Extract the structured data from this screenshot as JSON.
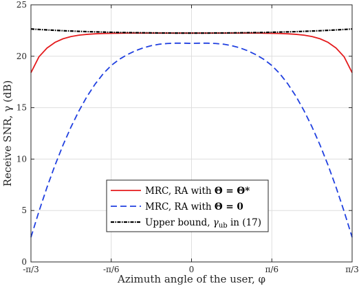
{
  "chart_data": {
    "type": "line",
    "xlabel": "Azimuth angle of the user, φ",
    "ylabel": "Receive SNR, γ (dB)",
    "xlim": [
      -1.0472,
      1.0472
    ],
    "ylim": [
      0,
      25
    ],
    "x_ticks": [
      {
        "value": -1.0472,
        "label": "-π/3"
      },
      {
        "value": -0.5236,
        "label": "-π/6"
      },
      {
        "value": 0,
        "label": "0"
      },
      {
        "value": 0.5236,
        "label": "π/6"
      },
      {
        "value": 1.0472,
        "label": "π/3"
      }
    ],
    "y_ticks": [
      0,
      5,
      10,
      15,
      20,
      25
    ],
    "grid": true,
    "legend_position": "bottom-center",
    "x": [
      -1.0472,
      -0.9948,
      -0.9425,
      -0.8901,
      -0.8378,
      -0.7854,
      -0.733,
      -0.6807,
      -0.6283,
      -0.576,
      -0.5236,
      -0.4712,
      -0.4189,
      -0.3665,
      -0.3142,
      -0.2618,
      -0.2094,
      -0.1571,
      -0.1047,
      -0.0524,
      0,
      0.0524,
      0.1047,
      0.1571,
      0.2094,
      0.2618,
      0.3142,
      0.3665,
      0.4189,
      0.4712,
      0.5236,
      0.576,
      0.6283,
      0.6807,
      0.733,
      0.7854,
      0.8378,
      0.8901,
      0.9425,
      0.9948,
      1.0472
    ],
    "series": [
      {
        "legend": "MRC, RA with ",
        "legend_math": "Θ = Θ*",
        "color": "#e41a1c",
        "dash": "solid",
        "values": [
          18.4,
          19.95,
          20.8,
          21.35,
          21.7,
          21.92,
          22.05,
          22.13,
          22.18,
          22.21,
          22.23,
          22.24,
          22.25,
          22.25,
          22.25,
          22.25,
          22.25,
          22.25,
          22.25,
          22.25,
          22.25,
          22.25,
          22.25,
          22.25,
          22.25,
          22.25,
          22.25,
          22.25,
          22.25,
          22.24,
          22.23,
          22.21,
          22.18,
          22.13,
          22.05,
          21.92,
          21.7,
          21.35,
          20.8,
          19.95,
          18.4
        ]
      },
      {
        "legend": "MRC, RA with ",
        "legend_math": "Θ = 0",
        "color": "#1f3fe0",
        "dash": "dashed",
        "values": [
          2.4,
          4.92,
          7.26,
          9.41,
          11.37,
          13.14,
          14.72,
          16.11,
          17.3,
          18.3,
          19.1,
          19.7,
          20.16,
          20.53,
          20.82,
          21.03,
          21.17,
          21.24,
          21.27,
          21.27,
          21.25,
          21.27,
          21.27,
          21.24,
          21.17,
          21.03,
          20.82,
          20.53,
          20.16,
          19.7,
          19.1,
          18.3,
          17.3,
          16.11,
          14.72,
          13.14,
          11.37,
          9.41,
          7.26,
          4.92,
          2.4
        ]
      },
      {
        "legend": "Upper bound, ",
        "legend_math": "γ",
        "legend_sub": "ub",
        "legend_tail": " in (17)",
        "color": "#000000",
        "dash": "dash-dot",
        "values": [
          22.65,
          22.6,
          22.56,
          22.52,
          22.48,
          22.45,
          22.42,
          22.39,
          22.37,
          22.35,
          22.33,
          22.31,
          22.3,
          22.29,
          22.28,
          22.27,
          22.26,
          22.26,
          22.25,
          22.25,
          22.25,
          22.25,
          22.25,
          22.26,
          22.26,
          22.27,
          22.28,
          22.29,
          22.3,
          22.31,
          22.33,
          22.35,
          22.37,
          22.39,
          22.42,
          22.45,
          22.48,
          22.52,
          22.56,
          22.6,
          22.65
        ]
      }
    ]
  }
}
